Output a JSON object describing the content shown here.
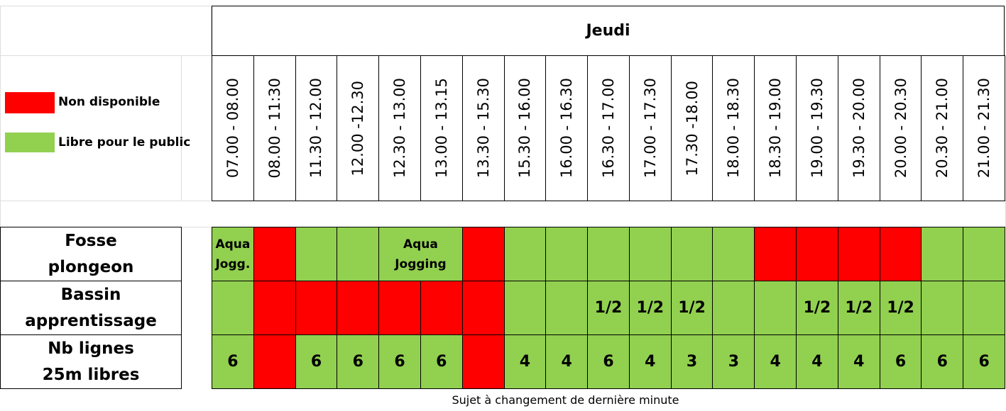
{
  "header": {
    "day": "Jeudi"
  },
  "legend": [
    {
      "label": "Non disponible",
      "status": "red"
    },
    {
      "label": "Libre pour le public",
      "status": "green"
    }
  ],
  "colors": {
    "red": "#ff0000",
    "green": "#92d050"
  },
  "slots": [
    "07.00 - 08.00",
    "08.00 - 11:30",
    "11.30 - 12.00",
    "12.00 -12.30",
    "12.30 - 13.00",
    "13.00 - 13.15",
    "13.30 - 15.30",
    "15.30 - 16.00",
    "16.00 - 16.30",
    "16.30 - 17.00",
    "17.00 - 17.30",
    "17.30 -18.00",
    "18.00 - 18.30",
    "18.30 - 19.00",
    "19.00 - 19.30",
    "19.30 - 20.00",
    "20.00 - 20.30",
    "20.30 - 21.00",
    "21.00 - 21.30"
  ],
  "rows": [
    {
      "label": [
        "Fosse",
        "plongeon"
      ],
      "cells": [
        {
          "status": "green",
          "text": "Aqua Jogg."
        },
        {
          "status": "red"
        },
        {
          "status": "green"
        },
        {
          "status": "green"
        },
        {
          "status": "green",
          "text": "Aqua Jogging",
          "span": 2
        },
        {
          "status": "red"
        },
        {
          "status": "green"
        },
        {
          "status": "green"
        },
        {
          "status": "green"
        },
        {
          "status": "green"
        },
        {
          "status": "green"
        },
        {
          "status": "green"
        },
        {
          "status": "red"
        },
        {
          "status": "red"
        },
        {
          "status": "red"
        },
        {
          "status": "red"
        },
        {
          "status": "green"
        },
        {
          "status": "green"
        }
      ]
    },
    {
      "label": [
        "Bassin",
        "apprentissage"
      ],
      "cells": [
        {
          "status": "green"
        },
        {
          "status": "red"
        },
        {
          "status": "red"
        },
        {
          "status": "red"
        },
        {
          "status": "red"
        },
        {
          "status": "red"
        },
        {
          "status": "red"
        },
        {
          "status": "green"
        },
        {
          "status": "green"
        },
        {
          "status": "green",
          "text": "1/2"
        },
        {
          "status": "green",
          "text": "1/2"
        },
        {
          "status": "green",
          "text": "1/2"
        },
        {
          "status": "green"
        },
        {
          "status": "green"
        },
        {
          "status": "green",
          "text": "1/2"
        },
        {
          "status": "green",
          "text": "1/2"
        },
        {
          "status": "green",
          "text": "1/2"
        },
        {
          "status": "green"
        },
        {
          "status": "green"
        }
      ]
    },
    {
      "label": [
        "Nb lignes",
        "25m libres"
      ],
      "cells": [
        {
          "status": "green",
          "text": 6
        },
        {
          "status": "red"
        },
        {
          "status": "green",
          "text": 6
        },
        {
          "status": "green",
          "text": 6
        },
        {
          "status": "green",
          "text": 6
        },
        {
          "status": "green",
          "text": 6
        },
        {
          "status": "red"
        },
        {
          "status": "green",
          "text": 4
        },
        {
          "status": "green",
          "text": 4
        },
        {
          "status": "green",
          "text": 6
        },
        {
          "status": "green",
          "text": 4
        },
        {
          "status": "green",
          "text": 3
        },
        {
          "status": "green",
          "text": 3
        },
        {
          "status": "green",
          "text": 4
        },
        {
          "status": "green",
          "text": 4
        },
        {
          "status": "green",
          "text": 4
        },
        {
          "status": "green",
          "text": 6
        },
        {
          "status": "green",
          "text": 6
        },
        {
          "status": "green",
          "text": 6
        }
      ]
    }
  ],
  "footer": "Sujet à changement de dernière minute"
}
